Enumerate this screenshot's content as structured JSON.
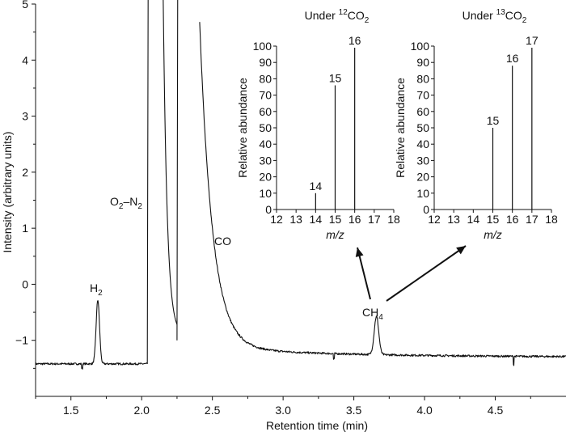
{
  "chart_data": [
    {
      "type": "line",
      "xlabel": "Retention time (min)",
      "ylabel": "Intensity (arbitrary units)",
      "xlim": [
        1.25,
        5.0
      ],
      "ylim": [
        -2.0,
        5.0
      ],
      "xticks": [
        "1.5",
        "2.0",
        "2.5",
        "3.0",
        "3.5",
        "4.0",
        "4.5"
      ],
      "yticks": [
        "−1",
        "0",
        "1",
        "2",
        "3",
        "4",
        "5"
      ],
      "baseline": -1.42,
      "peaks": [
        {
          "label": "H",
          "sub": "2",
          "x": 1.69,
          "y": -0.28
        },
        {
          "label": "O",
          "sub": "2",
          "label2": "–N",
          "sub2": "2",
          "x": 2.1,
          "y": 5.0
        },
        {
          "label": "CO",
          "sub": "",
          "x": 2.4,
          "y": 5.0
        },
        {
          "label": "CH",
          "sub": "4",
          "x": 3.66,
          "y": -0.72
        }
      ],
      "grid": false
    },
    {
      "type": "bar",
      "title": "Under ",
      "title_sup": "12",
      "title_rest": "CO",
      "title_sub": "2",
      "xlabel": "m/z",
      "ylabel": "Relative abundance",
      "xlim": [
        12,
        18
      ],
      "ylim": [
        0,
        100
      ],
      "xticks": [
        "12",
        "13",
        "14",
        "15",
        "16",
        "17",
        "18"
      ],
      "yticks": [
        "0",
        "10",
        "20",
        "30",
        "40",
        "50",
        "60",
        "70",
        "80",
        "90",
        "100"
      ],
      "x": [
        14,
        15,
        16
      ],
      "values": [
        10,
        76,
        99
      ],
      "value_labels": [
        "14",
        "15",
        "16"
      ]
    },
    {
      "type": "bar",
      "title": "Under ",
      "title_sup": "13",
      "title_rest": "CO",
      "title_sub": "2",
      "xlabel": "m/z",
      "ylabel": "Relative abundance",
      "xlim": [
        12,
        18
      ],
      "ylim": [
        0,
        100
      ],
      "xticks": [
        "12",
        "13",
        "14",
        "15",
        "16",
        "17",
        "18"
      ],
      "yticks": [
        "0",
        "10",
        "20",
        "30",
        "40",
        "50",
        "60",
        "70",
        "80",
        "90",
        "100"
      ],
      "x": [
        15,
        16,
        17
      ],
      "values": [
        50,
        88,
        99
      ],
      "value_labels": [
        "15",
        "16",
        "17"
      ]
    }
  ]
}
